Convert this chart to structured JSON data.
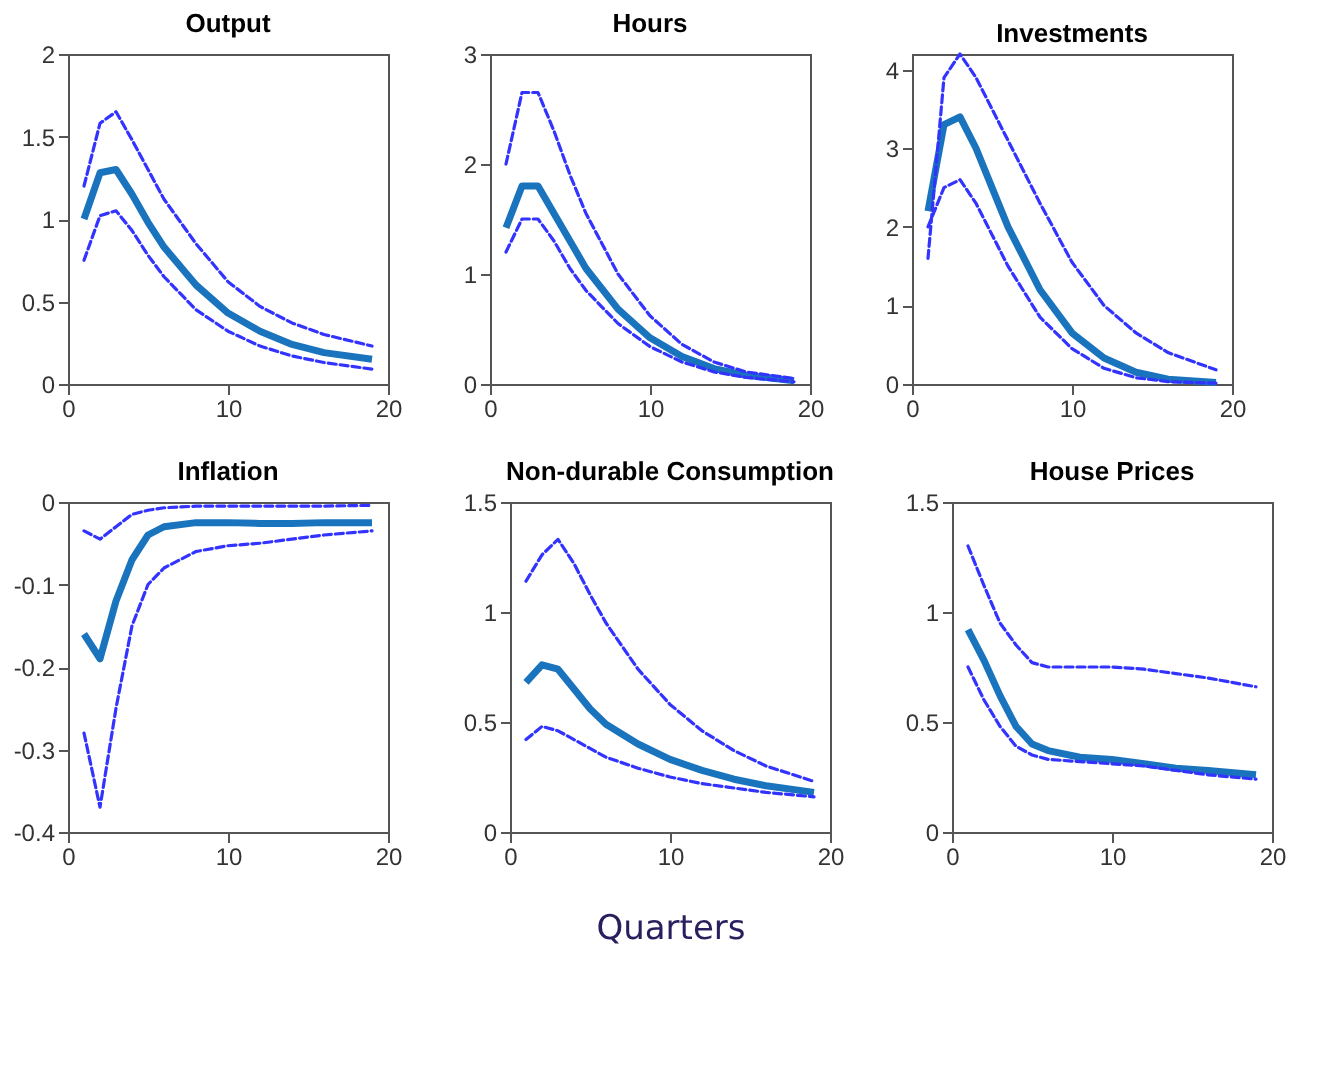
{
  "chart_data": [
    {
      "type": "line",
      "title": "Output",
      "x": [
        1,
        2,
        3,
        4,
        5,
        6,
        8,
        10,
        12,
        14,
        16,
        19
      ],
      "xlim": [
        0,
        20
      ],
      "xticks": [
        0,
        10,
        20
      ],
      "ylim": [
        0,
        2
      ],
      "yticks": [
        0,
        0.5,
        1,
        1.5,
        2
      ],
      "grid": false,
      "legend": false,
      "marker": "none",
      "series": [
        {
          "color": "#1a74bd",
          "line_style": "solid",
          "values": [
            1.0,
            1.28,
            1.3,
            1.15,
            0.98,
            0.83,
            0.6,
            0.43,
            0.32,
            0.24,
            0.19,
            0.15
          ]
        },
        {
          "color": "#3333ff",
          "line_style": "dashed",
          "values": [
            1.2,
            1.58,
            1.65,
            1.48,
            1.3,
            1.12,
            0.85,
            0.62,
            0.47,
            0.37,
            0.3,
            0.23
          ]
        },
        {
          "color": "#3333ff",
          "line_style": "dashed",
          "values": [
            0.75,
            1.02,
            1.05,
            0.93,
            0.78,
            0.65,
            0.45,
            0.32,
            0.23,
            0.17,
            0.13,
            0.09
          ]
        }
      ]
    },
    {
      "type": "line",
      "title": "Hours",
      "x": [
        1,
        2,
        3,
        4,
        5,
        6,
        8,
        10,
        12,
        14,
        16,
        19
      ],
      "xlim": [
        0,
        20
      ],
      "xticks": [
        0,
        10,
        20
      ],
      "ylim": [
        0,
        3
      ],
      "yticks": [
        0,
        1,
        2,
        3
      ],
      "grid": false,
      "legend": false,
      "marker": "none",
      "series": [
        {
          "color": "#1a74bd",
          "line_style": "solid",
          "values": [
            1.42,
            1.8,
            1.8,
            1.55,
            1.3,
            1.05,
            0.68,
            0.42,
            0.25,
            0.14,
            0.08,
            0.03
          ]
        },
        {
          "color": "#3333ff",
          "line_style": "dashed",
          "values": [
            2.0,
            2.65,
            2.65,
            2.3,
            1.9,
            1.55,
            1.0,
            0.62,
            0.36,
            0.2,
            0.11,
            0.05
          ]
        },
        {
          "color": "#3333ff",
          "line_style": "dashed",
          "values": [
            1.2,
            1.5,
            1.5,
            1.3,
            1.05,
            0.85,
            0.55,
            0.34,
            0.2,
            0.11,
            0.06,
            0.02
          ]
        }
      ]
    },
    {
      "type": "line",
      "title": "Investments",
      "x": [
        1,
        2,
        3,
        4,
        5,
        6,
        8,
        10,
        12,
        14,
        16,
        19
      ],
      "xlim": [
        0,
        20
      ],
      "xticks": [
        0,
        10,
        20
      ],
      "ylim": [
        0,
        4.2
      ],
      "yticks": [
        0,
        1,
        2,
        3,
        4
      ],
      "grid": false,
      "legend": false,
      "marker": "none",
      "series": [
        {
          "color": "#1a74bd",
          "line_style": "solid",
          "values": [
            2.2,
            3.3,
            3.4,
            3.0,
            2.5,
            2.0,
            1.2,
            0.65,
            0.33,
            0.15,
            0.06,
            0.02
          ]
        },
        {
          "color": "#3333ff",
          "line_style": "dashed",
          "values": [
            1.6,
            3.9,
            4.2,
            3.9,
            3.5,
            3.1,
            2.3,
            1.55,
            1.0,
            0.65,
            0.4,
            0.18
          ]
        },
        {
          "color": "#3333ff",
          "line_style": "dashed",
          "values": [
            2.0,
            2.5,
            2.6,
            2.3,
            1.9,
            1.5,
            0.85,
            0.45,
            0.2,
            0.08,
            0.03,
            0.01
          ]
        }
      ]
    },
    {
      "type": "line",
      "title": "Inflation",
      "x": [
        1,
        2,
        3,
        4,
        5,
        6,
        8,
        10,
        12,
        14,
        16,
        19
      ],
      "xlim": [
        0,
        20
      ],
      "xticks": [
        0,
        10,
        20
      ],
      "ylim": [
        -0.4,
        0
      ],
      "yticks": [
        -0.4,
        -0.3,
        -0.2,
        -0.1,
        0
      ],
      "grid": false,
      "legend": false,
      "marker": "none",
      "series": [
        {
          "color": "#1a74bd",
          "line_style": "solid",
          "values": [
            -0.16,
            -0.19,
            -0.12,
            -0.07,
            -0.04,
            -0.03,
            -0.025,
            -0.025,
            -0.026,
            -0.026,
            -0.025,
            -0.025
          ]
        },
        {
          "color": "#3333ff",
          "line_style": "dashed",
          "values": [
            -0.035,
            -0.045,
            -0.03,
            -0.015,
            -0.01,
            -0.007,
            -0.005,
            -0.005,
            -0.005,
            -0.005,
            -0.005,
            -0.004
          ]
        },
        {
          "color": "#3333ff",
          "line_style": "dashed",
          "values": [
            -0.28,
            -0.37,
            -0.25,
            -0.15,
            -0.1,
            -0.08,
            -0.06,
            -0.053,
            -0.05,
            -0.045,
            -0.04,
            -0.035
          ]
        }
      ]
    },
    {
      "type": "line",
      "title": "Non-durable Consumption",
      "xlabel": "Quarters",
      "x": [
        1,
        2,
        3,
        4,
        5,
        6,
        8,
        10,
        12,
        14,
        16,
        19
      ],
      "xlim": [
        0,
        20
      ],
      "xticks": [
        0,
        10,
        20
      ],
      "ylim": [
        0,
        1.5
      ],
      "yticks": [
        0,
        0.5,
        1,
        1.5
      ],
      "grid": false,
      "legend": false,
      "marker": "none",
      "series": [
        {
          "color": "#1a74bd",
          "line_style": "solid",
          "values": [
            0.68,
            0.76,
            0.74,
            0.65,
            0.56,
            0.49,
            0.4,
            0.33,
            0.28,
            0.24,
            0.21,
            0.18
          ]
        },
        {
          "color": "#3333ff",
          "line_style": "dashed",
          "values": [
            1.14,
            1.26,
            1.33,
            1.22,
            1.08,
            0.95,
            0.74,
            0.58,
            0.46,
            0.37,
            0.3,
            0.23
          ]
        },
        {
          "color": "#3333ff",
          "line_style": "dashed",
          "values": [
            0.42,
            0.48,
            0.46,
            0.42,
            0.38,
            0.34,
            0.29,
            0.25,
            0.22,
            0.2,
            0.18,
            0.16
          ]
        }
      ]
    },
    {
      "type": "line",
      "title": "House Prices",
      "x": [
        1,
        2,
        3,
        4,
        5,
        6,
        8,
        10,
        12,
        14,
        16,
        19
      ],
      "xlim": [
        0,
        20
      ],
      "xticks": [
        0,
        10,
        20
      ],
      "ylim": [
        0,
        1.5
      ],
      "yticks": [
        0,
        0.5,
        1,
        1.5
      ],
      "grid": false,
      "legend": false,
      "marker": "none",
      "series": [
        {
          "color": "#1a74bd",
          "line_style": "solid",
          "values": [
            0.92,
            0.78,
            0.62,
            0.48,
            0.4,
            0.37,
            0.34,
            0.33,
            0.31,
            0.29,
            0.28,
            0.26
          ]
        },
        {
          "color": "#3333ff",
          "line_style": "dashed",
          "values": [
            1.3,
            1.12,
            0.95,
            0.85,
            0.77,
            0.75,
            0.75,
            0.75,
            0.74,
            0.72,
            0.7,
            0.66
          ]
        },
        {
          "color": "#3333ff",
          "line_style": "dashed",
          "values": [
            0.75,
            0.6,
            0.48,
            0.39,
            0.35,
            0.33,
            0.32,
            0.31,
            0.3,
            0.28,
            0.26,
            0.24
          ]
        }
      ]
    }
  ]
}
